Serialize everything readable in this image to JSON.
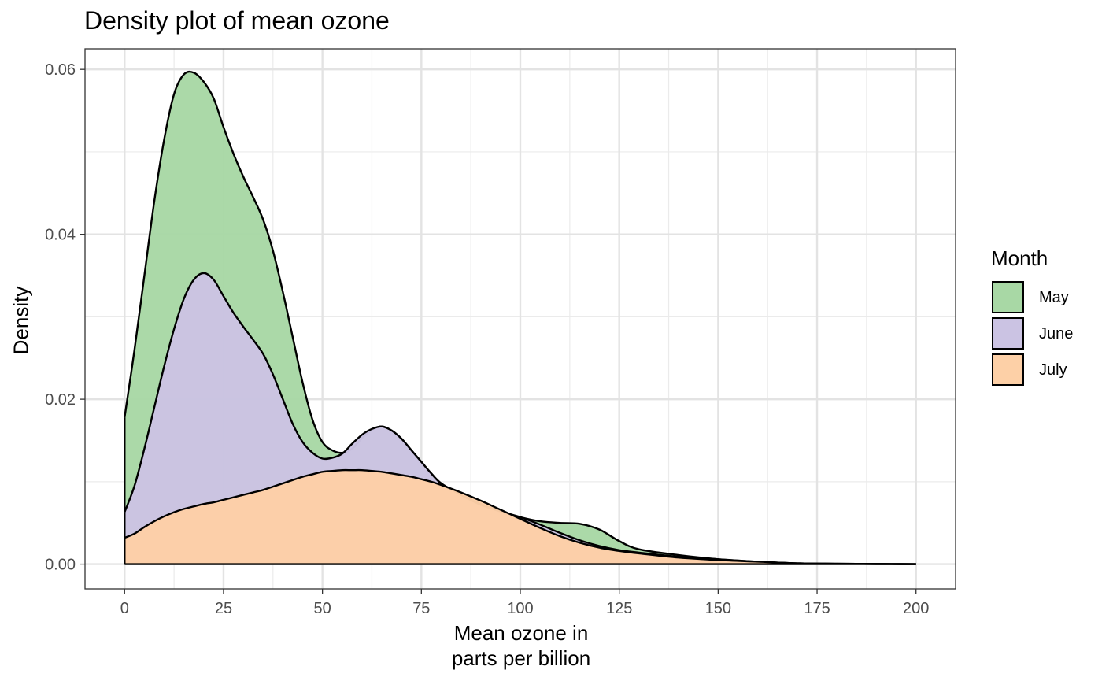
{
  "chart_data": {
    "type": "area",
    "subtype": "stacked-density",
    "title": "Density plot of mean ozone",
    "xlabel": "Mean ozone in\nparts per billion",
    "xlabel_lines": [
      "Mean ozone in",
      "parts per billion"
    ],
    "ylabel": "Density",
    "xlim": [
      -10,
      210
    ],
    "ylim": [
      -0.003,
      0.0625
    ],
    "x_ticks": [
      0,
      25,
      50,
      75,
      100,
      125,
      150,
      175,
      200
    ],
    "x_tick_labels": [
      "0",
      "25",
      "50",
      "75",
      "100",
      "125",
      "150",
      "175",
      "200"
    ],
    "y_ticks": [
      0,
      0.02,
      0.04,
      0.06
    ],
    "y_tick_labels": [
      "0.00",
      "0.02",
      "0.04",
      "0.06"
    ],
    "grid": true,
    "legend_title": "Month",
    "legend_position": "right",
    "x": [
      0,
      2.5,
      5,
      7.5,
      10,
      12.5,
      15,
      17.5,
      20,
      22.5,
      25,
      27.5,
      30,
      32.5,
      35,
      37.5,
      40,
      42.5,
      45,
      47.5,
      50,
      52.5,
      55,
      57.5,
      60,
      62.5,
      65,
      67.5,
      70,
      72.5,
      75,
      77.5,
      80,
      85,
      90,
      95,
      100,
      105,
      110,
      115,
      120,
      125,
      130,
      140,
      150,
      160,
      170,
      180,
      190,
      200
    ],
    "series": [
      {
        "name": "July",
        "color": "#fdd0a7",
        "stacked_top": [
          0.0032,
          0.0037,
          0.0045,
          0.0052,
          0.0058,
          0.0063,
          0.0067,
          0.007,
          0.0073,
          0.0075,
          0.0078,
          0.0081,
          0.0084,
          0.0087,
          0.009,
          0.0094,
          0.0098,
          0.0102,
          0.0106,
          0.0109,
          0.0112,
          0.0113,
          0.0114,
          0.0114,
          0.0114,
          0.0113,
          0.0112,
          0.011,
          0.0108,
          0.0106,
          0.0103,
          0.01,
          0.0096,
          0.0087,
          0.0077,
          0.0066,
          0.0055,
          0.0044,
          0.0034,
          0.0026,
          0.002,
          0.0016,
          0.0013,
          0.0008,
          0.0005,
          0.0003,
          0.0001,
          5e-05,
          2e-05,
          0.0
        ]
      },
      {
        "name": "June",
        "color": "#cbc3e3",
        "stacked_top": [
          0.0063,
          0.0095,
          0.014,
          0.019,
          0.024,
          0.0285,
          0.0322,
          0.0345,
          0.0353,
          0.0345,
          0.0325,
          0.0305,
          0.0288,
          0.0272,
          0.0255,
          0.023,
          0.02,
          0.017,
          0.0148,
          0.0135,
          0.0128,
          0.0129,
          0.0134,
          0.0146,
          0.0157,
          0.0164,
          0.0167,
          0.0162,
          0.0152,
          0.0138,
          0.0124,
          0.011,
          0.0098,
          0.0084,
          0.0072,
          0.0064,
          0.0057,
          0.0048,
          0.0038,
          0.0029,
          0.0022,
          0.0017,
          0.0014,
          0.0009,
          0.0006,
          0.0003,
          0.0001,
          5e-05,
          2e-05,
          0.0
        ]
      },
      {
        "name": "May",
        "color": "#a8d8a5",
        "stacked_top": [
          0.0178,
          0.026,
          0.035,
          0.044,
          0.0515,
          0.057,
          0.0594,
          0.0596,
          0.0585,
          0.0565,
          0.053,
          0.0498,
          0.047,
          0.0445,
          0.0418,
          0.038,
          0.033,
          0.0275,
          0.022,
          0.0175,
          0.0148,
          0.0138,
          0.0135,
          0.014,
          0.0153,
          0.0163,
          0.0167,
          0.0162,
          0.0152,
          0.0138,
          0.0124,
          0.011,
          0.0098,
          0.0084,
          0.0073,
          0.0064,
          0.0057,
          0.0052,
          0.005,
          0.0049,
          0.0042,
          0.0028,
          0.0018,
          0.0011,
          0.0006,
          0.0003,
          0.0001,
          5e-05,
          2e-05,
          0.0
        ]
      }
    ]
  },
  "legend": {
    "title": "Month",
    "items": [
      {
        "label": "May",
        "color": "#a8d8a5"
      },
      {
        "label": "June",
        "color": "#cbc3e3"
      },
      {
        "label": "July",
        "color": "#fdd0a7"
      }
    ]
  }
}
